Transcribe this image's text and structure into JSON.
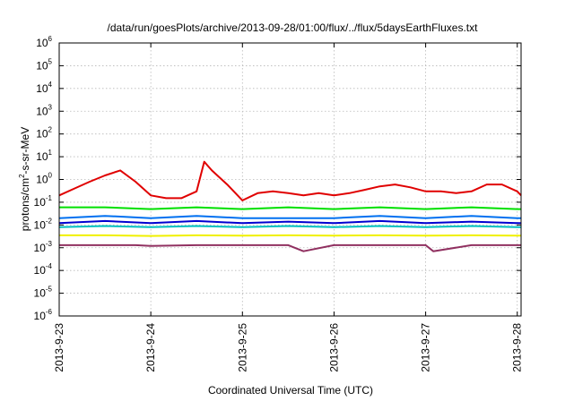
{
  "chart_data": {
    "type": "line",
    "title": "/data/run/goesPlots/archive/2013-09-28/01:00/flux/../flux/5daysEarthFluxes.txt",
    "xlabel": "Coordinated Universal Time (UTC)",
    "ylabel_parts": {
      "prefix": "protons/cm",
      "sup": "2",
      "suffix": "-s-sr-MeV"
    },
    "y_scale": "log",
    "ylim": [
      1e-06,
      1000000.0
    ],
    "xlim": [
      "2013-09-23 00:00",
      "2013-09-28 01:00"
    ],
    "grid": true,
    "legend": "none",
    "y_ticks": [
      {
        "value": 1000000.0,
        "base": "10",
        "exp": "6"
      },
      {
        "value": 100000.0,
        "base": "10",
        "exp": "5"
      },
      {
        "value": 10000.0,
        "base": "10",
        "exp": "4"
      },
      {
        "value": 1000.0,
        "base": "10",
        "exp": "3"
      },
      {
        "value": 100.0,
        "base": "10",
        "exp": "2"
      },
      {
        "value": 10.0,
        "base": "10",
        "exp": "1"
      },
      {
        "value": 1.0,
        "base": "10",
        "exp": "0"
      },
      {
        "value": 0.1,
        "base": "10",
        "exp": "-1"
      },
      {
        "value": 0.01,
        "base": "10",
        "exp": "-2"
      },
      {
        "value": 0.001,
        "base": "10",
        "exp": "-3"
      },
      {
        "value": 0.0001,
        "base": "10",
        "exp": "-4"
      },
      {
        "value": 1e-05,
        "base": "10",
        "exp": "-5"
      },
      {
        "value": 1e-06,
        "base": "10",
        "exp": "-6"
      }
    ],
    "x_ticks": [
      {
        "label": "2013-9-23",
        "value": "2013-09-23 00:00"
      },
      {
        "label": "2013-9-24",
        "value": "2013-09-24 00:00"
      },
      {
        "label": "2013-9-25",
        "value": "2013-09-25 00:00"
      },
      {
        "label": "2013-9-26",
        "value": "2013-09-26 00:00"
      },
      {
        "label": "2013-9-27",
        "value": "2013-09-27 00:00"
      },
      {
        "label": "2013-9-28",
        "value": "2013-09-28 00:00"
      }
    ],
    "series": [
      {
        "color": "#e00000",
        "x": [
          "2013-09-23 00:00",
          "2013-09-23 04:00",
          "2013-09-23 08:00",
          "2013-09-23 12:00",
          "2013-09-23 16:00",
          "2013-09-23 20:00",
          "2013-09-24 00:00",
          "2013-09-24 04:00",
          "2013-09-24 08:00",
          "2013-09-24 12:00",
          "2013-09-24 14:00",
          "2013-09-24 16:00",
          "2013-09-24 20:00",
          "2013-09-25 00:00",
          "2013-09-25 04:00",
          "2013-09-25 08:00",
          "2013-09-25 12:00",
          "2013-09-25 16:00",
          "2013-09-25 20:00",
          "2013-09-26 00:00",
          "2013-09-26 04:00",
          "2013-09-26 08:00",
          "2013-09-26 12:00",
          "2013-09-26 16:00",
          "2013-09-26 20:00",
          "2013-09-27 00:00",
          "2013-09-27 04:00",
          "2013-09-27 08:00",
          "2013-09-27 12:00",
          "2013-09-27 16:00",
          "2013-09-27 20:00",
          "2013-09-28 00:00",
          "2013-09-28 01:00"
        ],
        "values": [
          0.2,
          0.4,
          0.8,
          1.5,
          2.5,
          0.8,
          0.2,
          0.15,
          0.15,
          0.3,
          6,
          2.5,
          0.6,
          0.12,
          0.25,
          0.3,
          0.25,
          0.2,
          0.25,
          0.2,
          0.25,
          0.35,
          0.5,
          0.6,
          0.45,
          0.3,
          0.3,
          0.25,
          0.3,
          0.6,
          0.6,
          0.3,
          0.2
        ]
      },
      {
        "color": "#00e000",
        "x": [
          "2013-09-23 00:00",
          "2013-09-23 12:00",
          "2013-09-24 00:00",
          "2013-09-24 12:00",
          "2013-09-25 00:00",
          "2013-09-25 12:00",
          "2013-09-26 00:00",
          "2013-09-26 12:00",
          "2013-09-27 00:00",
          "2013-09-27 12:00",
          "2013-09-28 00:00",
          "2013-09-28 01:00"
        ],
        "values": [
          0.06,
          0.06,
          0.05,
          0.06,
          0.05,
          0.06,
          0.05,
          0.06,
          0.05,
          0.06,
          0.05,
          0.05
        ]
      },
      {
        "color": "#0070f0",
        "x": [
          "2013-09-23 00:00",
          "2013-09-23 12:00",
          "2013-09-24 00:00",
          "2013-09-24 12:00",
          "2013-09-25 00:00",
          "2013-09-25 12:00",
          "2013-09-26 00:00",
          "2013-09-26 12:00",
          "2013-09-27 00:00",
          "2013-09-27 12:00",
          "2013-09-28 00:00",
          "2013-09-28 01:00"
        ],
        "values": [
          0.02,
          0.025,
          0.02,
          0.025,
          0.02,
          0.02,
          0.02,
          0.025,
          0.02,
          0.025,
          0.02,
          0.02
        ]
      },
      {
        "color": "#0000d0",
        "x": [
          "2013-09-23 00:00",
          "2013-09-23 12:00",
          "2013-09-24 00:00",
          "2013-09-24 12:00",
          "2013-09-25 00:00",
          "2013-09-25 12:00",
          "2013-09-26 00:00",
          "2013-09-26 12:00",
          "2013-09-27 00:00",
          "2013-09-27 12:00",
          "2013-09-28 00:00",
          "2013-09-28 01:00"
        ],
        "values": [
          0.012,
          0.015,
          0.012,
          0.015,
          0.012,
          0.014,
          0.012,
          0.015,
          0.012,
          0.014,
          0.012,
          0.012
        ]
      },
      {
        "color": "#00c0c0",
        "x": [
          "2013-09-23 00:00",
          "2013-09-23 12:00",
          "2013-09-24 00:00",
          "2013-09-24 12:00",
          "2013-09-25 00:00",
          "2013-09-25 12:00",
          "2013-09-26 00:00",
          "2013-09-26 12:00",
          "2013-09-27 00:00",
          "2013-09-27 12:00",
          "2013-09-28 00:00",
          "2013-09-28 01:00"
        ],
        "values": [
          0.008,
          0.009,
          0.008,
          0.009,
          0.008,
          0.009,
          0.008,
          0.009,
          0.008,
          0.009,
          0.008,
          0.008
        ]
      },
      {
        "color": "#f0f000",
        "x": [
          "2013-09-23 00:00",
          "2013-09-23 12:00",
          "2013-09-24 00:00",
          "2013-09-24 12:00",
          "2013-09-25 00:00",
          "2013-09-25 12:00",
          "2013-09-26 00:00",
          "2013-09-26 12:00",
          "2013-09-27 00:00",
          "2013-09-27 12:00",
          "2013-09-28 00:00",
          "2013-09-28 01:00"
        ],
        "values": [
          0.0035,
          0.0035,
          0.0033,
          0.0035,
          0.0034,
          0.0035,
          0.0034,
          0.0035,
          0.0034,
          0.0035,
          0.0034,
          0.0034
        ]
      },
      {
        "color": "#903060",
        "x": [
          "2013-09-23 00:00",
          "2013-09-23 12:00",
          "2013-09-23 20:00",
          "2013-09-24 00:00",
          "2013-09-24 12:00",
          "2013-09-25 00:00",
          "2013-09-25 12:00",
          "2013-09-25 16:00",
          "2013-09-26 00:00",
          "2013-09-26 12:00",
          "2013-09-27 00:00",
          "2013-09-27 02:00",
          "2013-09-27 12:00",
          "2013-09-28 00:00",
          "2013-09-28 01:00"
        ],
        "values": [
          0.0013,
          0.0013,
          0.0013,
          0.0012,
          0.0013,
          0.0013,
          0.0013,
          0.0007,
          0.0013,
          0.0013,
          0.0013,
          0.0007,
          0.0013,
          0.0013,
          0.0013
        ]
      }
    ]
  }
}
